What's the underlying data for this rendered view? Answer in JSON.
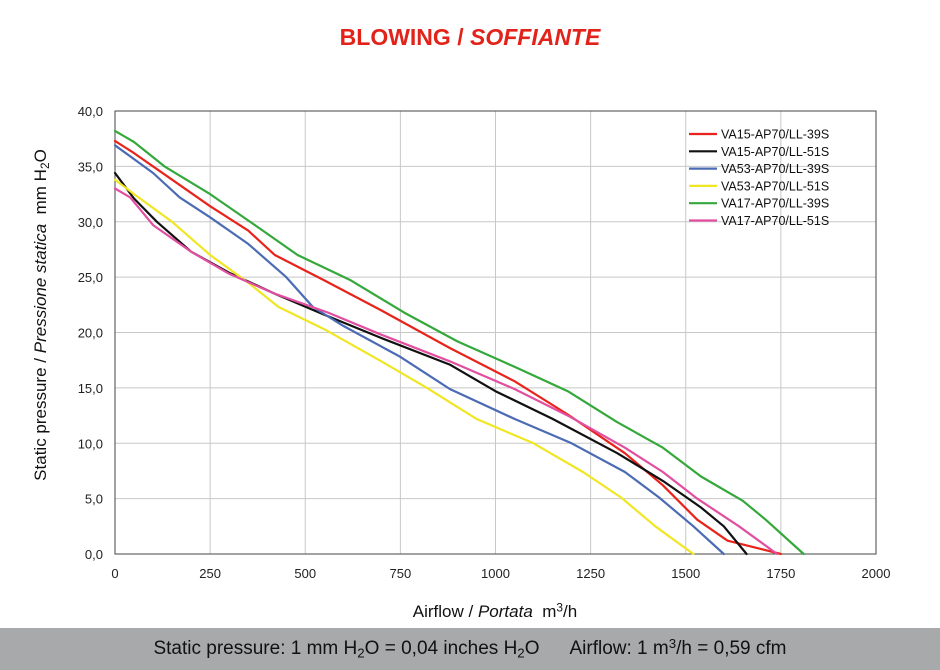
{
  "title": {
    "main": "BLOWING",
    "sep": " / ",
    "italic": "SOFFIANTE"
  },
  "chart_data": {
    "type": "line",
    "xlabel": {
      "main": "Airflow",
      "sep": " / ",
      "italic": "Portata",
      "unit_pre": "m",
      "unit_sup": "3",
      "unit_post": "/h"
    },
    "ylabel": {
      "main": "Static pressure",
      "sep": " / ",
      "italic": "Pressione statica",
      "unit_pre": "mm  H",
      "unit_sub": "2",
      "unit_post": "O"
    },
    "xlim": [
      0,
      2000
    ],
    "ylim": [
      0,
      40
    ],
    "x_ticks": [
      "0",
      "250",
      "500",
      "750",
      "1000",
      "1250",
      "1500",
      "1750",
      "2000"
    ],
    "y_ticks": [
      "0,0",
      "5,0",
      "10,0",
      "15,0",
      "20,0",
      "25,0",
      "30,0",
      "35,0",
      "40,0"
    ],
    "grid": true,
    "legend_position": "top-right",
    "series": [
      {
        "name": "VA15-AP70/LL-39S",
        "color": "#e8231b",
        "points": [
          [
            0,
            37.3
          ],
          [
            50,
            36.2
          ],
          [
            150,
            33.8
          ],
          [
            250,
            31.4
          ],
          [
            350,
            29.2
          ],
          [
            420,
            27.0
          ],
          [
            550,
            24.7
          ],
          [
            700,
            22.0
          ],
          [
            880,
            18.6
          ],
          [
            1050,
            15.6
          ],
          [
            1190,
            12.6
          ],
          [
            1340,
            9.1
          ],
          [
            1440,
            6.2
          ],
          [
            1530,
            3.1
          ],
          [
            1610,
            1.2
          ],
          [
            1750,
            0
          ]
        ]
      },
      {
        "name": "VA15-AP70/LL-51S",
        "color": "#111111",
        "points": [
          [
            0,
            34.4
          ],
          [
            50,
            32.1
          ],
          [
            110,
            30.0
          ],
          [
            200,
            27.3
          ],
          [
            300,
            25.4
          ],
          [
            420,
            23.5
          ],
          [
            550,
            21.6
          ],
          [
            700,
            19.5
          ],
          [
            880,
            17.1
          ],
          [
            1000,
            14.7
          ],
          [
            1150,
            12.2
          ],
          [
            1320,
            9.1
          ],
          [
            1440,
            6.6
          ],
          [
            1540,
            4.2
          ],
          [
            1600,
            2.5
          ],
          [
            1660,
            0
          ]
        ]
      },
      {
        "name": "VA53-AP70/LL-39S",
        "color": "#4b6bb4",
        "points": [
          [
            0,
            36.9
          ],
          [
            100,
            34.4
          ],
          [
            170,
            32.2
          ],
          [
            250,
            30.4
          ],
          [
            350,
            28.0
          ],
          [
            450,
            25.0
          ],
          [
            520,
            22.3
          ],
          [
            600,
            20.6
          ],
          [
            750,
            17.8
          ],
          [
            880,
            14.9
          ],
          [
            1050,
            12.2
          ],
          [
            1200,
            10.0
          ],
          [
            1340,
            7.4
          ],
          [
            1430,
            5.1
          ],
          [
            1520,
            2.5
          ],
          [
            1600,
            0
          ]
        ]
      },
      {
        "name": "VA53-AP70/LL-51S",
        "color": "#f0e624",
        "points": [
          [
            0,
            33.8
          ],
          [
            50,
            32.5
          ],
          [
            150,
            30.0
          ],
          [
            250,
            27.0
          ],
          [
            350,
            24.5
          ],
          [
            430,
            22.3
          ],
          [
            550,
            20.3
          ],
          [
            700,
            17.4
          ],
          [
            820,
            15.0
          ],
          [
            950,
            12.2
          ],
          [
            1100,
            10.0
          ],
          [
            1230,
            7.4
          ],
          [
            1330,
            5.1
          ],
          [
            1420,
            2.5
          ],
          [
            1520,
            0
          ]
        ]
      },
      {
        "name": "VA17-AP70/LL-39S",
        "color": "#35a83b",
        "points": [
          [
            0,
            38.2
          ],
          [
            50,
            37.2
          ],
          [
            130,
            35.0
          ],
          [
            250,
            32.5
          ],
          [
            380,
            29.4
          ],
          [
            480,
            27.0
          ],
          [
            620,
            24.7
          ],
          [
            760,
            21.8
          ],
          [
            900,
            19.2
          ],
          [
            1050,
            16.9
          ],
          [
            1190,
            14.7
          ],
          [
            1320,
            11.9
          ],
          [
            1440,
            9.6
          ],
          [
            1540,
            7.0
          ],
          [
            1650,
            4.8
          ],
          [
            1710,
            3.1
          ],
          [
            1810,
            0
          ]
        ]
      },
      {
        "name": "VA17-AP70/LL-51S",
        "color": "#e24ea0",
        "points": [
          [
            0,
            33.0
          ],
          [
            40,
            32.2
          ],
          [
            100,
            29.7
          ],
          [
            200,
            27.3
          ],
          [
            300,
            25.3
          ],
          [
            420,
            23.5
          ],
          [
            560,
            21.8
          ],
          [
            700,
            19.8
          ],
          [
            880,
            17.4
          ],
          [
            1050,
            14.9
          ],
          [
            1190,
            12.5
          ],
          [
            1340,
            9.6
          ],
          [
            1440,
            7.4
          ],
          [
            1530,
            5.0
          ],
          [
            1640,
            2.5
          ],
          [
            1740,
            0
          ]
        ]
      }
    ]
  },
  "footer": {
    "pressure": {
      "pre": "Static pressure: 1 mm H",
      "sub1": "2",
      "mid": "O = 0,04 inches H",
      "sub2": "2",
      "post": "O"
    },
    "airflow": {
      "pre": "Airflow: 1 m",
      "sup": "3",
      "post": "/h = 0,59 cfm"
    }
  }
}
